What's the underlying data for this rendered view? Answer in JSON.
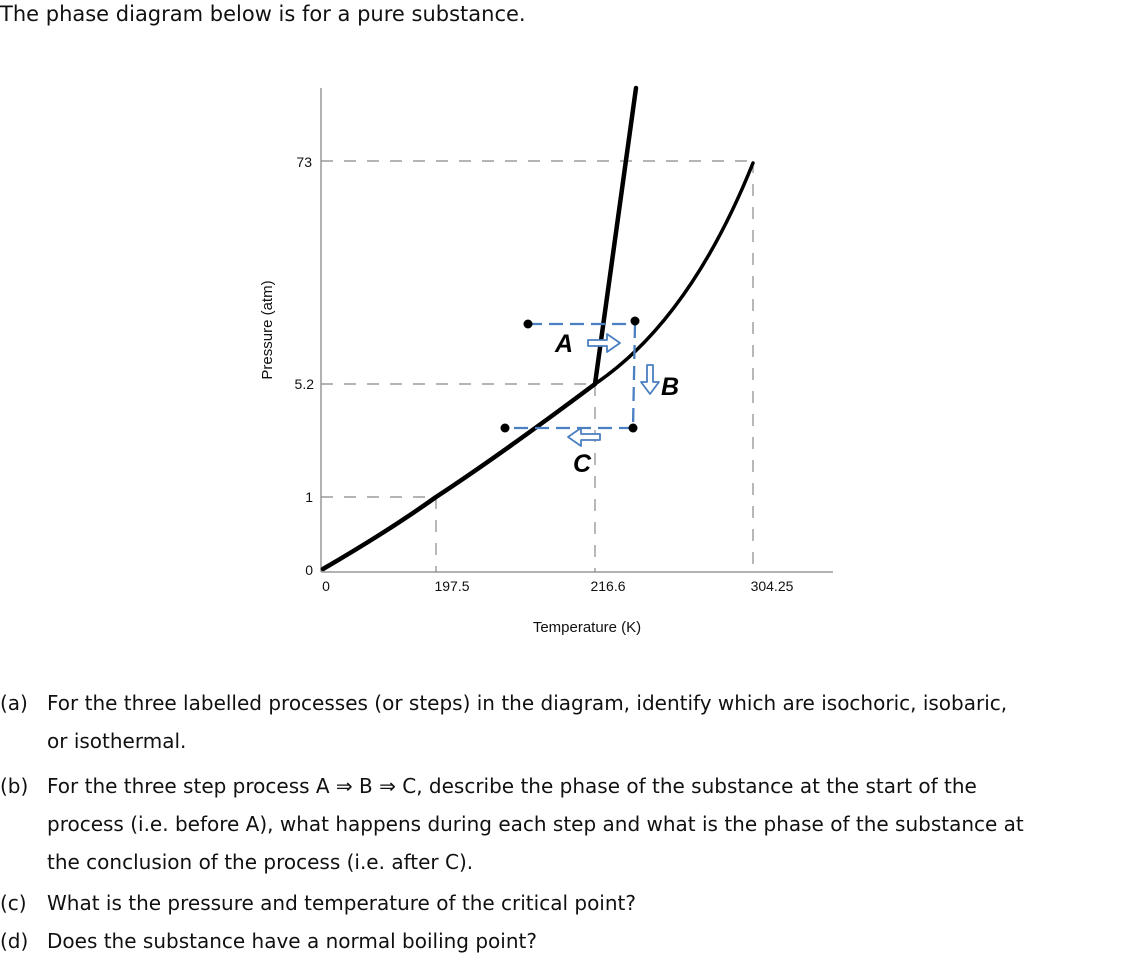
{
  "intro": "The phase diagram below is for a pure substance.",
  "diagram": {
    "ylabel": "Pressure (atm)",
    "xlabel": "Temperature (K)",
    "yticks": [
      "0",
      "1",
      "5.2",
      "73"
    ],
    "xticks": [
      "0",
      "197.5",
      "216.6",
      "304.25"
    ],
    "labels": {
      "A": "A",
      "B": "B",
      "C": "C"
    },
    "colors": {
      "curve": "#000000",
      "guide": "#888888",
      "process": "#4a7fc1"
    }
  },
  "questions": [
    {
      "label": "(a)",
      "lines": [
        "For the three labelled processes (or steps) in the diagram, identify which are isochoric, isobaric,",
        "or isothermal."
      ]
    },
    {
      "label": "(b)",
      "lines": [
        "For the three step process A ⇒ B ⇒ C, describe the phase of the substance at the start of the",
        "process (i.e. before A), what happens during each step and what is the phase of the substance at",
        "the conclusion of the process (i.e. after C)."
      ]
    },
    {
      "label": "(c)",
      "lines": [
        "What is the pressure and temperature of the critical point?"
      ]
    },
    {
      "label": "(d)",
      "lines": [
        "Does the substance have a normal boiling point?"
      ]
    }
  ]
}
